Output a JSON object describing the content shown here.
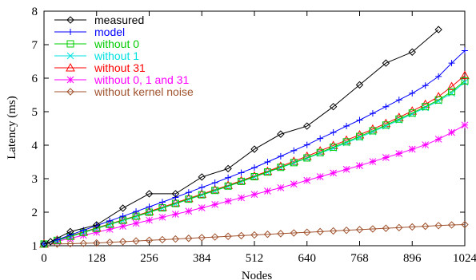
{
  "chart_data": {
    "type": "line",
    "title": "",
    "xlabel": "Nodes",
    "ylabel": "Latency (ms)",
    "xlim": [
      0,
      1024
    ],
    "ylim": [
      1,
      8
    ],
    "xticks": [
      0,
      128,
      256,
      384,
      512,
      640,
      768,
      896,
      1024
    ],
    "yticks": [
      1,
      2,
      3,
      4,
      5,
      6,
      7,
      8
    ],
    "grid": false,
    "legend_position": "top-left",
    "series": [
      {
        "name": "measured",
        "color": "#000000",
        "marker": "diamond",
        "x": [
          0,
          16,
          64,
          128,
          192,
          256,
          320,
          384,
          448,
          512,
          576,
          640,
          704,
          768,
          832,
          896,
          960
        ],
        "y": [
          1.05,
          1.12,
          1.42,
          1.62,
          2.12,
          2.55,
          2.55,
          3.05,
          3.3,
          3.88,
          4.33,
          4.57,
          5.15,
          5.8,
          6.45,
          6.78,
          7.45
        ]
      },
      {
        "name": "model",
        "color": "#0000ff",
        "marker": "plus",
        "x": [
          0,
          32,
          64,
          96,
          128,
          160,
          192,
          224,
          256,
          288,
          320,
          352,
          384,
          416,
          448,
          480,
          512,
          544,
          576,
          608,
          640,
          672,
          704,
          736,
          768,
          800,
          832,
          864,
          896,
          928,
          960,
          992,
          1024
        ],
        "y": [
          1.05,
          1.18,
          1.32,
          1.46,
          1.6,
          1.74,
          1.88,
          2.02,
          2.16,
          2.3,
          2.44,
          2.59,
          2.74,
          2.88,
          3.03,
          3.18,
          3.33,
          3.5,
          3.67,
          3.84,
          4.01,
          4.2,
          4.38,
          4.57,
          4.75,
          4.95,
          5.15,
          5.35,
          5.55,
          5.78,
          6.05,
          6.45,
          6.82
        ]
      },
      {
        "name": "without 0",
        "color": "#00cc00",
        "marker": "square",
        "x": [
          0,
          32,
          64,
          96,
          128,
          160,
          192,
          224,
          256,
          288,
          320,
          352,
          384,
          416,
          448,
          480,
          512,
          544,
          576,
          608,
          640,
          672,
          704,
          736,
          768,
          800,
          832,
          864,
          896,
          928,
          960,
          992,
          1024
        ],
        "y": [
          1.05,
          1.16,
          1.28,
          1.4,
          1.52,
          1.64,
          1.76,
          1.88,
          2.0,
          2.13,
          2.26,
          2.39,
          2.52,
          2.65,
          2.78,
          2.92,
          3.06,
          3.2,
          3.34,
          3.48,
          3.62,
          3.78,
          3.94,
          4.1,
          4.26,
          4.43,
          4.6,
          4.78,
          4.96,
          5.15,
          5.35,
          5.6,
          5.92
        ]
      },
      {
        "name": "without 1",
        "color": "#00e0e0",
        "marker": "cross",
        "x": [
          0,
          32,
          64,
          96,
          128,
          160,
          192,
          224,
          256,
          288,
          320,
          352,
          384,
          416,
          448,
          480,
          512,
          544,
          576,
          608,
          640,
          672,
          704,
          736,
          768,
          800,
          832,
          864,
          896,
          928,
          960,
          992,
          1024
        ],
        "y": [
          1.05,
          1.15,
          1.27,
          1.39,
          1.51,
          1.63,
          1.75,
          1.87,
          1.99,
          2.12,
          2.25,
          2.38,
          2.51,
          2.64,
          2.77,
          2.91,
          3.05,
          3.19,
          3.33,
          3.47,
          3.61,
          3.76,
          3.91,
          4.07,
          4.23,
          4.4,
          4.57,
          4.75,
          4.93,
          5.12,
          5.32,
          5.55,
          5.88
        ]
      },
      {
        "name": "without 31",
        "color": "#ff0000",
        "marker": "triangle",
        "x": [
          0,
          32,
          64,
          96,
          128,
          160,
          192,
          224,
          256,
          288,
          320,
          352,
          384,
          416,
          448,
          480,
          512,
          544,
          576,
          608,
          640,
          672,
          704,
          736,
          768,
          800,
          832,
          864,
          896,
          928,
          960,
          992,
          1024
        ],
        "y": [
          1.05,
          1.17,
          1.29,
          1.41,
          1.53,
          1.65,
          1.77,
          1.89,
          2.02,
          2.15,
          2.28,
          2.41,
          2.54,
          2.67,
          2.8,
          2.94,
          3.08,
          3.22,
          3.37,
          3.52,
          3.67,
          3.83,
          3.99,
          4.15,
          4.31,
          4.48,
          4.65,
          4.83,
          5.02,
          5.22,
          5.45,
          5.75,
          6.08
        ]
      },
      {
        "name": "without 0, 1 and 31",
        "color": "#ff00ff",
        "marker": "asterisk",
        "x": [
          0,
          32,
          64,
          96,
          128,
          160,
          192,
          224,
          256,
          288,
          320,
          352,
          384,
          416,
          448,
          480,
          512,
          544,
          576,
          608,
          640,
          672,
          704,
          736,
          768,
          800,
          832,
          864,
          896,
          928,
          960,
          992,
          1024
        ],
        "y": [
          1.05,
          1.13,
          1.22,
          1.31,
          1.4,
          1.49,
          1.58,
          1.67,
          1.76,
          1.85,
          1.94,
          2.03,
          2.13,
          2.23,
          2.33,
          2.43,
          2.53,
          2.63,
          2.73,
          2.84,
          2.95,
          3.06,
          3.17,
          3.28,
          3.39,
          3.51,
          3.63,
          3.75,
          3.88,
          4.01,
          4.18,
          4.38,
          4.6
        ]
      },
      {
        "name": "without kernel noise",
        "color": "#a0522d",
        "marker": "diamond",
        "x": [
          0,
          32,
          64,
          96,
          128,
          160,
          192,
          224,
          256,
          288,
          320,
          352,
          384,
          416,
          448,
          480,
          512,
          544,
          576,
          608,
          640,
          672,
          704,
          736,
          768,
          800,
          832,
          864,
          896,
          928,
          960,
          992,
          1024
        ],
        "y": [
          1.05,
          1.05,
          1.06,
          1.07,
          1.08,
          1.1,
          1.12,
          1.14,
          1.16,
          1.18,
          1.2,
          1.22,
          1.24,
          1.26,
          1.28,
          1.3,
          1.32,
          1.34,
          1.36,
          1.38,
          1.4,
          1.42,
          1.44,
          1.46,
          1.48,
          1.5,
          1.52,
          1.54,
          1.56,
          1.58,
          1.6,
          1.62,
          1.63
        ]
      }
    ]
  }
}
